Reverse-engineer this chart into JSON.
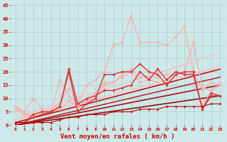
{
  "background_color": "#cce8e8",
  "grid_color": "#aacccc",
  "xlabel": "Vent moyen/en rafales ( km/h )",
  "xlabel_color": "#cc0000",
  "xlabel_fontsize": 6.5,
  "xtick_color": "#cc0000",
  "ytick_color": "#cc0000",
  "xlim": [
    -0.5,
    23.5
  ],
  "ylim": [
    0,
    46
  ],
  "yticks": [
    0,
    5,
    10,
    15,
    20,
    25,
    30,
    35,
    40,
    45
  ],
  "xticks": [
    0,
    1,
    2,
    3,
    4,
    5,
    6,
    7,
    8,
    9,
    10,
    11,
    12,
    13,
    14,
    15,
    16,
    17,
    18,
    19,
    20,
    21,
    22,
    23
  ],
  "lines": [
    {
      "x": [
        0,
        1,
        2,
        3,
        4,
        5,
        6,
        7,
        8,
        9,
        10,
        11,
        12,
        13,
        14,
        15,
        16,
        17,
        18,
        19,
        20,
        21,
        22,
        23
      ],
      "y": [
        7,
        5,
        10,
        6,
        5,
        17,
        11,
        8,
        15,
        17,
        20,
        30,
        31,
        41,
        31,
        31,
        31,
        30,
        33,
        37,
        20,
        13,
        16,
        15
      ],
      "color": "#ffaaaa",
      "lw": 0.9,
      "marker": "D",
      "ms": 1.8
    },
    {
      "x": [
        0,
        1,
        2,
        3,
        4,
        5,
        6,
        7,
        8,
        9,
        10,
        11,
        12,
        13,
        14,
        15,
        16,
        17,
        18,
        19,
        20,
        21,
        22,
        23
      ],
      "y": [
        7,
        4,
        4,
        5,
        6,
        8,
        14,
        8,
        9,
        12,
        16,
        16,
        19,
        21,
        18,
        18,
        18,
        19,
        19,
        20,
        20,
        7,
        13,
        16
      ],
      "color": "#ffaaaa",
      "lw": 0.9,
      "marker": "D",
      "ms": 1.8
    },
    {
      "x": [
        0,
        1,
        2,
        3,
        4,
        5,
        6,
        7,
        8,
        9,
        10,
        11,
        12,
        13,
        14,
        15,
        16,
        17,
        18,
        19,
        20,
        21,
        22,
        23
      ],
      "y": [
        6,
        4,
        3,
        4,
        5,
        6,
        9,
        7,
        9,
        11,
        15,
        16,
        18,
        20,
        16,
        17,
        16,
        17,
        19,
        20,
        31,
        14,
        13,
        15
      ],
      "color": "#ffaaaa",
      "lw": 0.9,
      "marker": "D",
      "ms": 1.8
    },
    {
      "x": [
        0,
        23
      ],
      "y": [
        3,
        27
      ],
      "color": "#ffbbbb",
      "lw": 0.9,
      "marker": null,
      "ms": 0
    },
    {
      "x": [
        0,
        23
      ],
      "y": [
        2,
        22
      ],
      "color": "#ffbbbb",
      "lw": 0.9,
      "marker": null,
      "ms": 0
    },
    {
      "x": [
        0,
        1,
        2,
        3,
        4,
        5,
        6,
        7,
        8,
        9,
        10,
        11,
        12,
        13,
        14,
        15,
        16,
        17,
        18,
        19,
        20,
        21,
        22,
        23
      ],
      "y": [
        1,
        1,
        4,
        5,
        5,
        7,
        21,
        8,
        10,
        11,
        13,
        13,
        14,
        15,
        20,
        17,
        21,
        17,
        20,
        19,
        19,
        6,
        12,
        11
      ],
      "color": "#dd3333",
      "lw": 1.0,
      "marker": "D",
      "ms": 1.8
    },
    {
      "x": [
        0,
        1,
        2,
        3,
        4,
        5,
        6,
        7,
        8,
        9,
        10,
        11,
        12,
        13,
        14,
        15,
        16,
        17,
        18,
        19,
        20,
        21,
        22,
        23
      ],
      "y": [
        1,
        1,
        3,
        4,
        5,
        7,
        20,
        5,
        8,
        10,
        19,
        19,
        20,
        20,
        23,
        20,
        19,
        15,
        19,
        20,
        20,
        6,
        11,
        11
      ],
      "color": "#dd3333",
      "lw": 1.0,
      "marker": "D",
      "ms": 1.8
    },
    {
      "x": [
        0,
        23
      ],
      "y": [
        1,
        21
      ],
      "color": "#cc0000",
      "lw": 1.1,
      "marker": null,
      "ms": 0
    },
    {
      "x": [
        0,
        23
      ],
      "y": [
        0,
        11
      ],
      "color": "#880000",
      "lw": 1.1,
      "marker": null,
      "ms": 0
    },
    {
      "x": [
        0,
        23
      ],
      "y": [
        0,
        15
      ],
      "color": "#aa0000",
      "lw": 1.1,
      "marker": null,
      "ms": 0
    },
    {
      "x": [
        0,
        23
      ],
      "y": [
        0,
        18
      ],
      "color": "#bb1111",
      "lw": 1.0,
      "marker": null,
      "ms": 0
    },
    {
      "x": [
        0,
        1,
        2,
        3,
        4,
        5,
        6,
        7,
        8,
        9,
        10,
        11,
        12,
        13,
        14,
        15,
        16,
        17,
        18,
        19,
        20,
        21,
        22,
        23
      ],
      "y": [
        1,
        1,
        1,
        1,
        1,
        2,
        3,
        3,
        4,
        4,
        4,
        5,
        5,
        5,
        6,
        6,
        6,
        7,
        7,
        7,
        7,
        7,
        8,
        8
      ],
      "color": "#cc0000",
      "lw": 0.8,
      "marker": "D",
      "ms": 1.5
    }
  ]
}
